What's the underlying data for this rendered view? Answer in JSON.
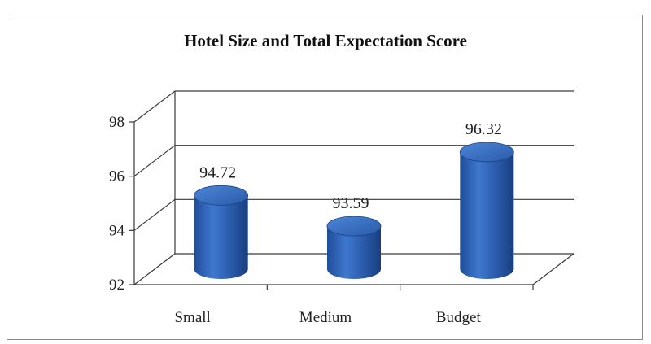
{
  "chart_data": {
    "type": "bar",
    "title": "Hotel Size and Total Expectation Score",
    "categories": [
      "Small",
      "Medium",
      "Budget"
    ],
    "values": [
      94.72,
      93.59,
      96.32
    ],
    "data_labels": [
      "94.72",
      "93.59",
      "96.32"
    ],
    "yticks": [
      "92",
      "94",
      "96",
      "98"
    ],
    "ylim": [
      92,
      98
    ],
    "grid": true,
    "legend": "none",
    "style": "3d-cylinder",
    "bar_color": "#2f62b4"
  }
}
